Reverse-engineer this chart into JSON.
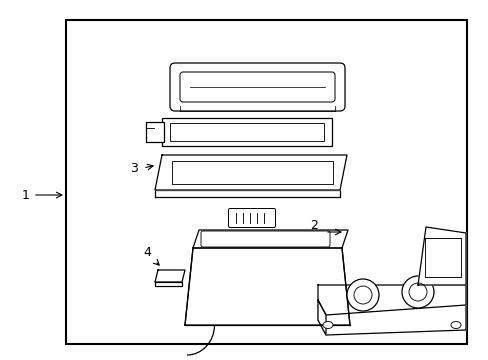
{
  "background_color": "#ffffff",
  "line_color": "#000000",
  "border": [
    0.135,
    0.055,
    0.955,
    0.955
  ],
  "figsize": [
    4.89,
    3.6
  ],
  "dpi": 100
}
